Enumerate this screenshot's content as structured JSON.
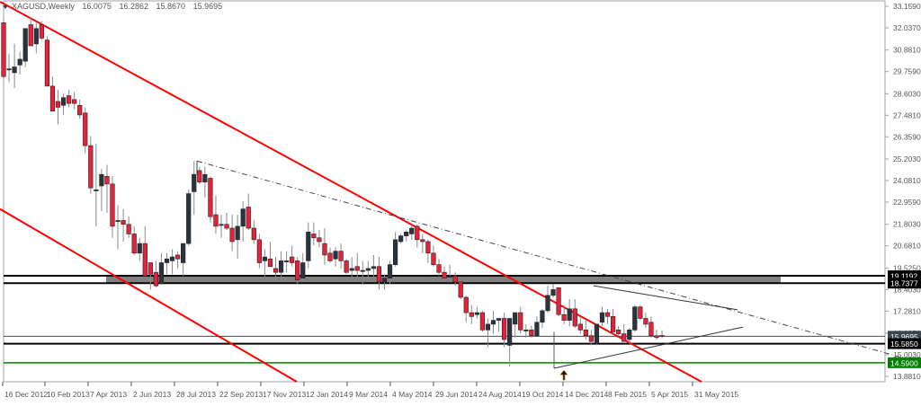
{
  "header": {
    "symbol": "XAGUSD",
    "timeframe": "Weekly",
    "symbol_timeframe": "XAGUSD,Weekly",
    "open": "16.0075",
    "high": "16.2862",
    "low": "15.8670",
    "close": "15.9695"
  },
  "colors": {
    "bull": "#2b3340",
    "bear": "#e8203a",
    "wick": "#8a8a8a",
    "channel": "#ff0000",
    "support_zone": "#808080",
    "support_line_green": "#008000",
    "axis": "#9aa3ad",
    "label_text": "#555555"
  },
  "chart_data": {
    "type": "candlestick",
    "title": "XAGUSD,Weekly",
    "xlabel": "",
    "ylabel": "",
    "ylim": [
      13.881,
      33.159
    ],
    "grid": false,
    "y_ticks": [
      "33.1590",
      "32.0370",
      "30.8810",
      "29.7590",
      "28.6030",
      "27.4810",
      "26.3590",
      "25.2030",
      "24.0810",
      "22.9590",
      "21.8030",
      "20.6810",
      "19.5250",
      "18.4030",
      "17.2810",
      "16.1250",
      "15.0030",
      "13.8810"
    ],
    "x_ticks": [
      "16 Dec 2012",
      "10 Feb 2013",
      "7 Apr 2013",
      "2 Jun 2013",
      "28 Jul 2013",
      "22 Sep 2013",
      "17 Nov 2013",
      "12 Jan 2014",
      "9 Mar 2014",
      "4 May 2014",
      "29 Jun 2014",
      "24 Aug 2014",
      "19 Oct 2014",
      "14 Dec 2014",
      "8 Feb 2015",
      "5 Apr 2015",
      "31 May 2015"
    ],
    "price_labels": [
      {
        "value": "19.1192",
        "style": "dark"
      },
      {
        "value": "18.7377",
        "style": "dark"
      },
      {
        "value": "15.9695",
        "style": "current"
      },
      {
        "value": "15.5850",
        "style": "dark"
      },
      {
        "value": "14.5900",
        "style": "green"
      }
    ],
    "horizontal_levels": [
      {
        "name": "resistance-zone-top",
        "value": 19.1192
      },
      {
        "name": "resistance-zone-bottom",
        "value": 18.7377
      },
      {
        "name": "current-price",
        "value": 15.9695
      },
      {
        "name": "support-level",
        "value": 15.585
      },
      {
        "name": "green-support",
        "value": 14.59
      }
    ],
    "annotations": [
      {
        "type": "channel-line-upper",
        "color": "red",
        "from": [
          0,
          33.4
        ],
        "to": [
          780,
          13.6
        ]
      },
      {
        "type": "channel-line-lower",
        "color": "red",
        "from": [
          0,
          22.6
        ],
        "to": [
          330,
          13.6
        ]
      },
      {
        "type": "dash-dot-trendline",
        "from": [
          219,
          25.1
        ],
        "to": [
          1000,
          14.9
        ]
      },
      {
        "type": "triangle-upper",
        "from": [
          660,
          18.6
        ],
        "to": [
          820,
          17.35
        ]
      },
      {
        "type": "triangle-lower",
        "from": [
          616,
          14.3
        ],
        "to": [
          826,
          16.45
        ]
      },
      {
        "type": "arrow-up",
        "at": [
          627,
          14.2
        ]
      },
      {
        "type": "shaded-zone",
        "top": 19.1192,
        "bottom": 18.7377,
        "x_from": 118,
        "x_to": 868
      }
    ],
    "candles": [
      {
        "o": 32.3,
        "h": 32.6,
        "l": 29.4,
        "c": 29.5
      },
      {
        "o": 29.9,
        "h": 30.7,
        "l": 29.2,
        "c": 29.9
      },
      {
        "o": 29.7,
        "h": 31.2,
        "l": 28.9,
        "c": 30.0
      },
      {
        "o": 30.1,
        "h": 30.8,
        "l": 29.6,
        "c": 30.4
      },
      {
        "o": 30.3,
        "h": 32.0,
        "l": 30.0,
        "c": 32.0
      },
      {
        "o": 32.2,
        "h": 32.6,
        "l": 31.2,
        "c": 31.1
      },
      {
        "o": 31.2,
        "h": 32.3,
        "l": 30.7,
        "c": 32.0
      },
      {
        "o": 32.2,
        "h": 32.4,
        "l": 31.4,
        "c": 31.5
      },
      {
        "o": 31.4,
        "h": 31.6,
        "l": 29.0,
        "c": 29.0
      },
      {
        "o": 29.0,
        "h": 29.5,
        "l": 27.7,
        "c": 27.7
      },
      {
        "o": 28.2,
        "h": 28.8,
        "l": 27.0,
        "c": 27.9
      },
      {
        "o": 28.0,
        "h": 28.6,
        "l": 27.5,
        "c": 28.4
      },
      {
        "o": 28.5,
        "h": 28.8,
        "l": 27.9,
        "c": 28.1
      },
      {
        "o": 28.3,
        "h": 28.7,
        "l": 27.8,
        "c": 28.1
      },
      {
        "o": 28.0,
        "h": 28.3,
        "l": 27.3,
        "c": 27.5
      },
      {
        "o": 27.6,
        "h": 27.9,
        "l": 25.5,
        "c": 25.9
      },
      {
        "o": 25.9,
        "h": 26.4,
        "l": 23.4,
        "c": 23.7
      },
      {
        "o": 23.6,
        "h": 26.0,
        "l": 21.7,
        "c": 23.6
      },
      {
        "o": 23.8,
        "h": 24.7,
        "l": 22.5,
        "c": 24.4
      },
      {
        "o": 24.3,
        "h": 24.9,
        "l": 22.4,
        "c": 23.9
      },
      {
        "o": 23.9,
        "h": 24.3,
        "l": 21.1,
        "c": 21.7
      },
      {
        "o": 22.0,
        "h": 22.8,
        "l": 20.5,
        "c": 22.0
      },
      {
        "o": 22.0,
        "h": 22.6,
        "l": 20.9,
        "c": 21.8
      },
      {
        "o": 21.8,
        "h": 22.2,
        "l": 21.1,
        "c": 21.3
      },
      {
        "o": 21.3,
        "h": 21.7,
        "l": 20.2,
        "c": 20.3
      },
      {
        "o": 20.3,
        "h": 21.1,
        "l": 19.9,
        "c": 20.8
      },
      {
        "o": 20.8,
        "h": 21.7,
        "l": 19.1,
        "c": 19.1
      },
      {
        "o": 19.8,
        "h": 19.8,
        "l": 18.4,
        "c": 19.2
      },
      {
        "o": 19.3,
        "h": 19.9,
        "l": 18.5,
        "c": 18.6
      },
      {
        "o": 18.7,
        "h": 20.3,
        "l": 18.7,
        "c": 19.8
      },
      {
        "o": 19.8,
        "h": 20.3,
        "l": 19.2,
        "c": 20.0
      },
      {
        "o": 19.9,
        "h": 20.5,
        "l": 19.2,
        "c": 20.1
      },
      {
        "o": 20.2,
        "h": 20.4,
        "l": 19.5,
        "c": 20.0
      },
      {
        "o": 19.8,
        "h": 20.7,
        "l": 19.1,
        "c": 20.8
      },
      {
        "o": 20.8,
        "h": 23.6,
        "l": 20.7,
        "c": 23.4
      },
      {
        "o": 23.5,
        "h": 25.1,
        "l": 22.3,
        "c": 24.4
      },
      {
        "o": 24.6,
        "h": 24.8,
        "l": 23.9,
        "c": 24.0
      },
      {
        "o": 24.0,
        "h": 24.8,
        "l": 23.2,
        "c": 24.4
      },
      {
        "o": 24.2,
        "h": 24.3,
        "l": 21.9,
        "c": 22.2
      },
      {
        "o": 22.3,
        "h": 23.3,
        "l": 21.3,
        "c": 21.7
      },
      {
        "o": 21.8,
        "h": 22.3,
        "l": 21.1,
        "c": 21.8
      },
      {
        "o": 21.8,
        "h": 22.4,
        "l": 21.5,
        "c": 21.6
      },
      {
        "o": 21.6,
        "h": 22.3,
        "l": 20.4,
        "c": 20.9
      },
      {
        "o": 21.0,
        "h": 22.3,
        "l": 20.0,
        "c": 21.7
      },
      {
        "o": 21.7,
        "h": 23.0,
        "l": 20.9,
        "c": 22.6
      },
      {
        "o": 22.7,
        "h": 23.4,
        "l": 21.5,
        "c": 21.6
      },
      {
        "o": 21.6,
        "h": 22.0,
        "l": 20.8,
        "c": 21.0
      },
      {
        "o": 21.0,
        "h": 21.3,
        "l": 19.5,
        "c": 19.8
      },
      {
        "o": 19.9,
        "h": 20.5,
        "l": 19.0,
        "c": 20.1
      },
      {
        "o": 20.0,
        "h": 20.9,
        "l": 19.6,
        "c": 19.6
      },
      {
        "o": 19.5,
        "h": 20.1,
        "l": 18.8,
        "c": 19.3
      },
      {
        "o": 19.3,
        "h": 20.4,
        "l": 18.9,
        "c": 19.9
      },
      {
        "o": 19.9,
        "h": 20.4,
        "l": 19.3,
        "c": 19.9
      },
      {
        "o": 20.1,
        "h": 20.7,
        "l": 19.6,
        "c": 19.8
      },
      {
        "o": 19.9,
        "h": 20.1,
        "l": 18.7,
        "c": 18.9
      },
      {
        "o": 19.0,
        "h": 20.3,
        "l": 18.8,
        "c": 19.8
      },
      {
        "o": 19.9,
        "h": 21.9,
        "l": 19.5,
        "c": 21.4
      },
      {
        "o": 21.3,
        "h": 21.9,
        "l": 20.7,
        "c": 21.1
      },
      {
        "o": 21.1,
        "h": 21.5,
        "l": 20.6,
        "c": 20.9
      },
      {
        "o": 20.8,
        "h": 21.6,
        "l": 19.7,
        "c": 20.2
      },
      {
        "o": 20.3,
        "h": 20.6,
        "l": 19.8,
        "c": 19.9
      },
      {
        "o": 20.0,
        "h": 20.6,
        "l": 19.6,
        "c": 20.4
      },
      {
        "o": 20.4,
        "h": 20.8,
        "l": 19.5,
        "c": 19.9
      },
      {
        "o": 19.9,
        "h": 20.0,
        "l": 19.2,
        "c": 19.3
      },
      {
        "o": 19.4,
        "h": 20.1,
        "l": 19.0,
        "c": 19.5
      },
      {
        "o": 19.6,
        "h": 20.3,
        "l": 19.0,
        "c": 19.4
      },
      {
        "o": 19.4,
        "h": 19.9,
        "l": 18.7,
        "c": 19.4
      },
      {
        "o": 19.4,
        "h": 19.9,
        "l": 18.9,
        "c": 19.5
      },
      {
        "o": 19.5,
        "h": 20.2,
        "l": 19.0,
        "c": 19.6
      },
      {
        "o": 19.6,
        "h": 20.1,
        "l": 18.4,
        "c": 18.8
      },
      {
        "o": 18.8,
        "h": 19.2,
        "l": 18.4,
        "c": 19.0
      },
      {
        "o": 19.0,
        "h": 19.9,
        "l": 18.7,
        "c": 19.7
      },
      {
        "o": 19.7,
        "h": 21.4,
        "l": 19.6,
        "c": 21.0
      },
      {
        "o": 20.9,
        "h": 21.3,
        "l": 20.8,
        "c": 21.2
      },
      {
        "o": 21.2,
        "h": 21.5,
        "l": 20.9,
        "c": 21.4
      },
      {
        "o": 21.3,
        "h": 21.8,
        "l": 21.0,
        "c": 21.6
      },
      {
        "o": 21.7,
        "h": 21.8,
        "l": 20.6,
        "c": 21.0
      },
      {
        "o": 21.0,
        "h": 21.3,
        "l": 20.3,
        "c": 20.9
      },
      {
        "o": 20.9,
        "h": 21.0,
        "l": 19.8,
        "c": 20.3
      },
      {
        "o": 20.3,
        "h": 20.7,
        "l": 19.6,
        "c": 19.7
      },
      {
        "o": 19.7,
        "h": 20.0,
        "l": 19.1,
        "c": 19.3
      },
      {
        "o": 19.3,
        "h": 19.6,
        "l": 18.9,
        "c": 19.0
      },
      {
        "o": 19.1,
        "h": 19.7,
        "l": 18.9,
        "c": 19.1
      },
      {
        "o": 19.1,
        "h": 19.3,
        "l": 18.6,
        "c": 18.8
      },
      {
        "o": 18.8,
        "h": 19.0,
        "l": 17.9,
        "c": 18.0
      },
      {
        "o": 18.0,
        "h": 18.1,
        "l": 16.7,
        "c": 17.2
      },
      {
        "o": 17.2,
        "h": 17.6,
        "l": 16.6,
        "c": 17.0
      },
      {
        "o": 17.1,
        "h": 17.5,
        "l": 16.9,
        "c": 17.2
      },
      {
        "o": 17.2,
        "h": 17.3,
        "l": 16.2,
        "c": 16.3
      },
      {
        "o": 16.3,
        "h": 16.9,
        "l": 15.4,
        "c": 16.6
      },
      {
        "o": 16.6,
        "h": 17.3,
        "l": 16.1,
        "c": 16.8
      },
      {
        "o": 16.8,
        "h": 16.9,
        "l": 16.2,
        "c": 16.9
      },
      {
        "o": 16.9,
        "h": 17.2,
        "l": 15.4,
        "c": 15.8
      },
      {
        "o": 15.5,
        "h": 16.9,
        "l": 14.4,
        "c": 16.9
      },
      {
        "o": 16.6,
        "h": 16.9,
        "l": 15.9,
        "c": 17.2
      },
      {
        "o": 17.2,
        "h": 17.5,
        "l": 16.1,
        "c": 16.3
      },
      {
        "o": 16.3,
        "h": 16.6,
        "l": 15.9,
        "c": 16.3
      },
      {
        "o": 16.3,
        "h": 16.5,
        "l": 15.9,
        "c": 16.0
      },
      {
        "o": 16.0,
        "h": 17.0,
        "l": 16.3,
        "c": 16.7
      },
      {
        "o": 16.7,
        "h": 17.4,
        "l": 16.4,
        "c": 17.3
      },
      {
        "o": 17.3,
        "h": 18.6,
        "l": 17.2,
        "c": 18.1
      },
      {
        "o": 18.1,
        "h": 18.7,
        "l": 18.0,
        "c": 18.4
      },
      {
        "o": 18.5,
        "h": 18.5,
        "l": 17.0,
        "c": 17.1
      },
      {
        "o": 17.1,
        "h": 17.6,
        "l": 16.6,
        "c": 16.8
      },
      {
        "o": 16.8,
        "h": 17.9,
        "l": 16.5,
        "c": 17.4
      },
      {
        "o": 17.4,
        "h": 17.9,
        "l": 16.4,
        "c": 16.5
      },
      {
        "o": 16.6,
        "h": 17.0,
        "l": 16.1,
        "c": 16.3
      },
      {
        "o": 16.3,
        "h": 16.8,
        "l": 15.8,
        "c": 16.0
      },
      {
        "o": 16.0,
        "h": 16.3,
        "l": 15.5,
        "c": 15.7
      },
      {
        "o": 15.6,
        "h": 16.6,
        "l": 15.5,
        "c": 16.6
      },
      {
        "o": 16.7,
        "h": 17.5,
        "l": 16.5,
        "c": 17.2
      },
      {
        "o": 17.2,
        "h": 17.4,
        "l": 16.6,
        "c": 17.0
      },
      {
        "o": 17.0,
        "h": 17.4,
        "l": 16.1,
        "c": 16.2
      },
      {
        "o": 16.3,
        "h": 16.5,
        "l": 16.0,
        "c": 16.1
      },
      {
        "o": 16.1,
        "h": 16.6,
        "l": 15.7,
        "c": 15.7
      },
      {
        "o": 15.8,
        "h": 16.4,
        "l": 15.6,
        "c": 16.3
      },
      {
        "o": 16.3,
        "h": 17.6,
        "l": 16.2,
        "c": 17.5
      },
      {
        "o": 17.5,
        "h": 17.6,
        "l": 16.8,
        "c": 16.9
      },
      {
        "o": 16.9,
        "h": 17.2,
        "l": 16.4,
        "c": 16.6
      },
      {
        "o": 16.7,
        "h": 17.0,
        "l": 15.9,
        "c": 16.0
      },
      {
        "o": 16.0,
        "h": 16.3,
        "l": 15.8,
        "c": 15.9
      },
      {
        "o": 16.0075,
        "h": 16.2862,
        "l": 15.867,
        "c": 15.9695
      }
    ]
  }
}
